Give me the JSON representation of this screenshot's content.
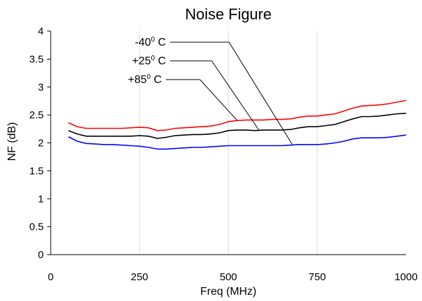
{
  "chart_data": {
    "type": "line",
    "title": "Noise Figure",
    "xlabel": "Freq (MHz)",
    "ylabel": "NF (dB)",
    "xlim": [
      0,
      1000
    ],
    "ylim": [
      0,
      4
    ],
    "xticks": [
      0,
      250,
      500,
      750,
      1000
    ],
    "yticks": [
      0,
      0.5,
      1,
      1.5,
      2,
      2.5,
      3,
      3.5,
      4
    ],
    "xtick_labels": [
      "0",
      "250",
      "500",
      "750",
      "1000"
    ],
    "ytick_labels": [
      "0",
      "0.5",
      "1",
      "1.5",
      "2",
      "2.5",
      "3",
      "3.5",
      "4"
    ],
    "grid": "vertical",
    "series": [
      {
        "name": "-40° C",
        "color": "#000000",
        "x": [
          50,
          75,
          100,
          125,
          150,
          175,
          200,
          225,
          250,
          275,
          300,
          325,
          350,
          375,
          400,
          425,
          450,
          475,
          500,
          525,
          550,
          575,
          600,
          625,
          650,
          675,
          700,
          725,
          750,
          775,
          800,
          825,
          850,
          875,
          900,
          925,
          950,
          975,
          1000
        ],
        "values": [
          2.22,
          2.16,
          2.12,
          2.12,
          2.12,
          2.12,
          2.12,
          2.12,
          2.13,
          2.12,
          2.08,
          2.1,
          2.13,
          2.14,
          2.15,
          2.15,
          2.16,
          2.18,
          2.22,
          2.23,
          2.23,
          2.22,
          2.23,
          2.23,
          2.23,
          2.24,
          2.27,
          2.29,
          2.29,
          2.31,
          2.33,
          2.38,
          2.43,
          2.47,
          2.47,
          2.48,
          2.5,
          2.52,
          2.53
        ]
      },
      {
        "name": "+25° C",
        "color": "#ff0000",
        "x": [
          50,
          75,
          100,
          125,
          150,
          175,
          200,
          225,
          250,
          275,
          300,
          325,
          350,
          375,
          400,
          425,
          450,
          475,
          500,
          525,
          550,
          575,
          600,
          625,
          650,
          675,
          700,
          725,
          750,
          775,
          800,
          825,
          850,
          875,
          900,
          925,
          950,
          975,
          1000
        ],
        "values": [
          2.36,
          2.29,
          2.26,
          2.26,
          2.26,
          2.26,
          2.26,
          2.27,
          2.28,
          2.27,
          2.22,
          2.23,
          2.26,
          2.27,
          2.28,
          2.29,
          2.3,
          2.33,
          2.38,
          2.4,
          2.41,
          2.41,
          2.41,
          2.42,
          2.42,
          2.43,
          2.46,
          2.48,
          2.48,
          2.5,
          2.52,
          2.57,
          2.62,
          2.66,
          2.67,
          2.68,
          2.7,
          2.73,
          2.76
        ]
      },
      {
        "name": "+85° C",
        "color": "#0000ff",
        "x": [
          50,
          75,
          100,
          125,
          150,
          175,
          200,
          225,
          250,
          275,
          300,
          325,
          350,
          375,
          400,
          425,
          450,
          475,
          500,
          525,
          550,
          575,
          600,
          625,
          650,
          675,
          700,
          725,
          750,
          775,
          800,
          825,
          850,
          875,
          900,
          925,
          950,
          975,
          1000
        ],
        "values": [
          2.11,
          2.03,
          1.99,
          1.98,
          1.97,
          1.97,
          1.96,
          1.95,
          1.94,
          1.92,
          1.89,
          1.89,
          1.9,
          1.91,
          1.92,
          1.92,
          1.93,
          1.94,
          1.95,
          1.95,
          1.95,
          1.95,
          1.95,
          1.95,
          1.95,
          1.96,
          1.97,
          1.97,
          1.97,
          1.98,
          2.0,
          2.03,
          2.07,
          2.09,
          2.09,
          2.09,
          2.1,
          2.12,
          2.14
        ]
      }
    ],
    "annotations": [
      {
        "base": "-40",
        "sup": "0",
        "unit": " C"
      },
      {
        "base": "+25",
        "sup": "0",
        "unit": " C"
      },
      {
        "base": "+85",
        "sup": "0",
        "unit": " C"
      }
    ]
  }
}
